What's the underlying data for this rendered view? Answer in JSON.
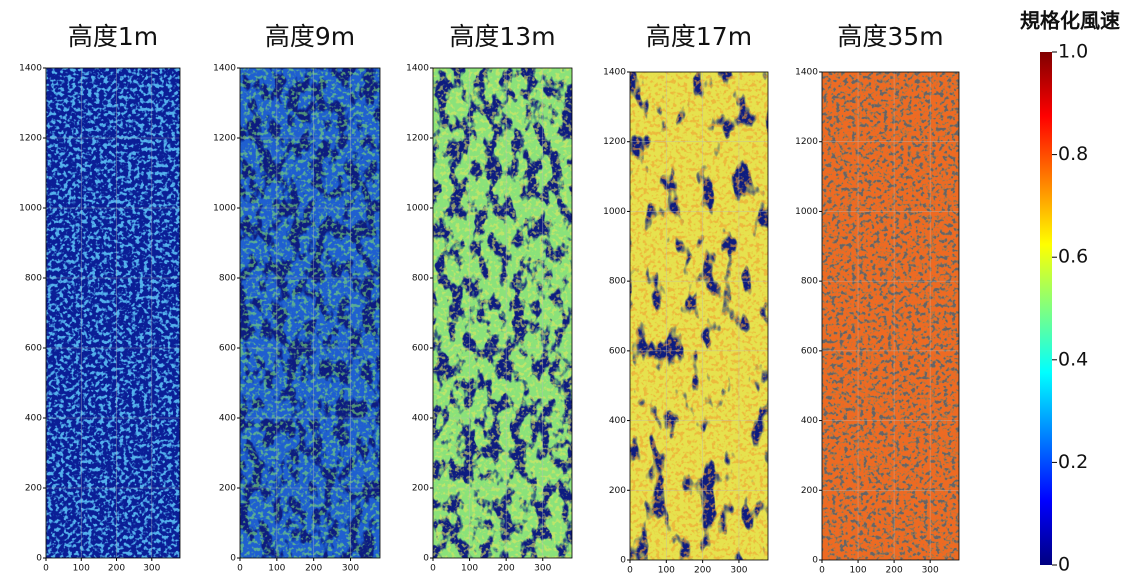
{
  "chart_data": [
    {
      "type": "heatmap",
      "title": "高度1m",
      "xlim": [
        0,
        380
      ],
      "ylim": [
        0,
        1400
      ],
      "xticks": [
        0,
        100,
        200,
        300
      ],
      "yticks": [
        0,
        200,
        400,
        600,
        800,
        1000,
        1200,
        1400
      ]
    },
    {
      "type": "heatmap",
      "title": "高度9m",
      "xlim": [
        0,
        380
      ],
      "ylim": [
        0,
        1400
      ],
      "xticks": [
        0,
        100,
        200,
        300
      ],
      "yticks": [
        0,
        200,
        400,
        600,
        800,
        1000,
        1200,
        1400
      ]
    },
    {
      "type": "heatmap",
      "title": "高度13m",
      "xlim": [
        0,
        380
      ],
      "ylim": [
        0,
        1400
      ],
      "xticks": [
        0,
        100,
        200,
        300
      ],
      "yticks": [
        0,
        200,
        400,
        600,
        800,
        1000,
        1200,
        1400
      ]
    },
    {
      "type": "heatmap",
      "title": "高度17m",
      "xlim": [
        0,
        380
      ],
      "ylim": [
        0,
        1400
      ],
      "xticks": [
        0,
        100,
        200,
        300
      ],
      "yticks": [
        0,
        200,
        400,
        600,
        800,
        1000,
        1200,
        1400
      ]
    },
    {
      "type": "heatmap",
      "title": "高度35m",
      "xlim": [
        0,
        380
      ],
      "ylim": [
        0,
        1400
      ],
      "xticks": [
        0,
        100,
        200,
        300
      ],
      "yticks": [
        0,
        200,
        400,
        600,
        800,
        1000,
        1200,
        1400
      ]
    }
  ],
  "colorbar": {
    "title": "規格化風速",
    "colormap": "jet",
    "lim": [
      0,
      1
    ],
    "ticks": [
      0,
      0.2,
      0.4,
      0.6,
      0.8,
      {
        "value": 1,
        "label": "1.0"
      }
    ]
  }
}
